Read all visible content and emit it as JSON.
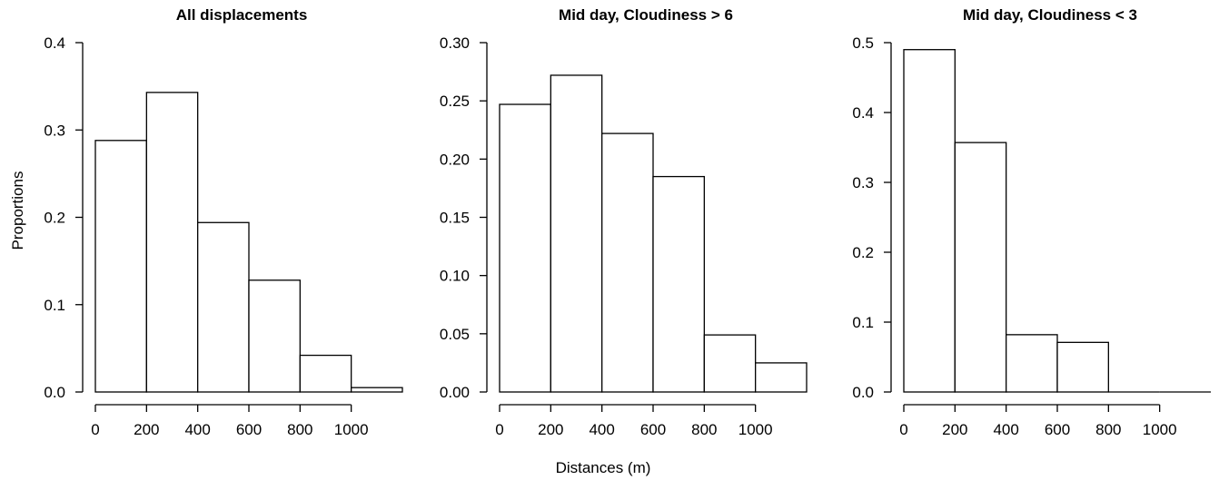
{
  "figure": {
    "ylabel": "Proportions",
    "xlabel": "Distances (m)"
  },
  "chart_data": [
    {
      "type": "bar",
      "title": "All displacements",
      "bin_edges": [
        0,
        200,
        400,
        600,
        800,
        1000,
        1200
      ],
      "values": [
        0.288,
        0.343,
        0.194,
        0.128,
        0.042,
        0.005
      ],
      "xticks": [
        0,
        200,
        400,
        600,
        800,
        1000
      ],
      "xtick_labels": [
        "0",
        "200",
        "400",
        "600",
        "800",
        "1000"
      ],
      "xlim": [
        0,
        1200
      ],
      "yticks": [
        0.0,
        0.1,
        0.2,
        0.3,
        0.4
      ],
      "ytick_labels": [
        "0.0",
        "0.1",
        "0.2",
        "0.3",
        "0.4"
      ],
      "ylim": [
        0,
        0.4
      ],
      "xlabel": "",
      "ylabel": "Proportions",
      "grid": false
    },
    {
      "type": "bar",
      "title": "Mid day, Cloudiness > 6",
      "bin_edges": [
        0,
        200,
        400,
        600,
        800,
        1000,
        1200
      ],
      "values": [
        0.247,
        0.272,
        0.222,
        0.185,
        0.049,
        0.025
      ],
      "xticks": [
        0,
        200,
        400,
        600,
        800,
        1000
      ],
      "xtick_labels": [
        "0",
        "200",
        "400",
        "600",
        "800",
        "1000"
      ],
      "xlim": [
        0,
        1200
      ],
      "yticks": [
        0.0,
        0.05,
        0.1,
        0.15,
        0.2,
        0.25,
        0.3
      ],
      "ytick_labels": [
        "0.00",
        "0.05",
        "0.10",
        "0.15",
        "0.20",
        "0.25",
        "0.30"
      ],
      "ylim": [
        0,
        0.3
      ],
      "xlabel": "Distances (m)",
      "ylabel": "",
      "grid": false
    },
    {
      "type": "bar",
      "title": "Mid day, Cloudiness < 3",
      "bin_edges": [
        0,
        200,
        400,
        600,
        800,
        1000,
        1200
      ],
      "values": [
        0.49,
        0.357,
        0.082,
        0.071,
        0,
        0
      ],
      "xticks": [
        0,
        200,
        400,
        600,
        800,
        1000
      ],
      "xtick_labels": [
        "0",
        "200",
        "400",
        "600",
        "800",
        "1000"
      ],
      "xlim": [
        0,
        1200
      ],
      "yticks": [
        0.0,
        0.1,
        0.2,
        0.3,
        0.4,
        0.5
      ],
      "ytick_labels": [
        "0.0",
        "0.1",
        "0.2",
        "0.3",
        "0.4",
        "0.5"
      ],
      "ylim": [
        0,
        0.5
      ],
      "xlabel": "",
      "ylabel": "",
      "grid": false
    }
  ]
}
